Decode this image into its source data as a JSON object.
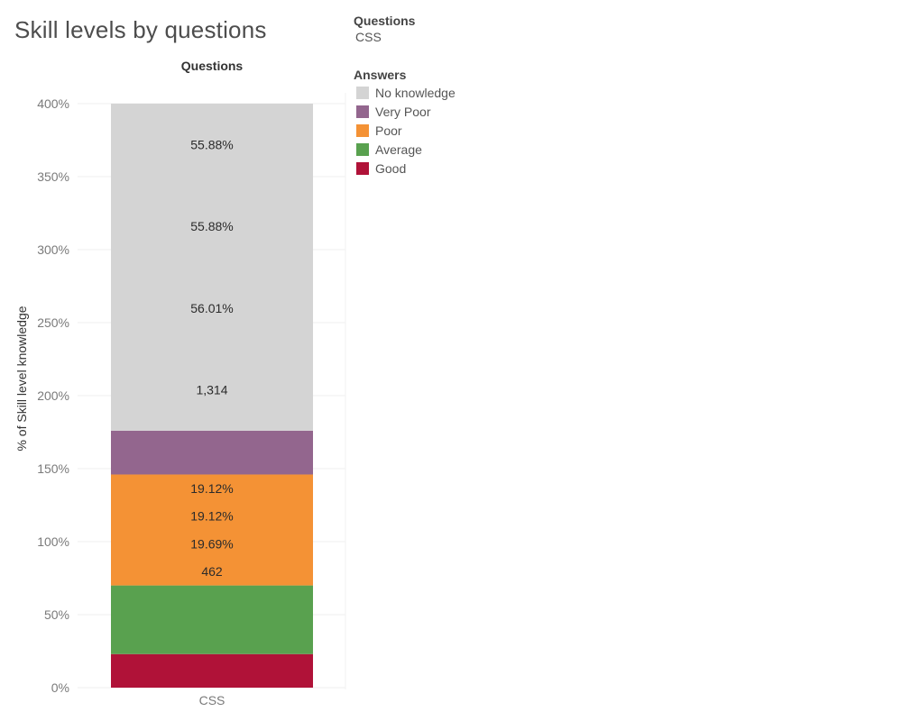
{
  "title": "Skill levels by questions",
  "legend": {
    "filter_heading": "Questions",
    "filter_value": "CSS",
    "answers_heading": "Answers",
    "items": [
      {
        "label": "No knowledge",
        "color": "#d4d4d4"
      },
      {
        "label": "Very Poor",
        "color": "#93668e"
      },
      {
        "label": "Poor",
        "color": "#f49235"
      },
      {
        "label": "Average",
        "color": "#59a14f"
      },
      {
        "label": "Good",
        "color": "#b01238"
      }
    ]
  },
  "chart_data": {
    "type": "bar",
    "stacked": true,
    "column_header": "Questions",
    "ylabel": "% of Skill level knowledge",
    "xlabel": "",
    "categories": [
      "CSS"
    ],
    "ylim": [
      0,
      400
    ],
    "yticks": [
      0,
      50,
      100,
      150,
      200,
      250,
      300,
      350,
      400
    ],
    "ytick_labels": [
      "0%",
      "50%",
      "100%",
      "150%",
      "200%",
      "250%",
      "300%",
      "350%",
      "400%"
    ],
    "grid": true,
    "legend_position": "right",
    "series": [
      {
        "name": "Good",
        "color": "#b01238",
        "values": [
          23.0
        ],
        "labels": []
      },
      {
        "name": "Average",
        "color": "#59a14f",
        "values": [
          47.0
        ],
        "labels": []
      },
      {
        "name": "Poor",
        "color": "#f49235",
        "values": [
          76.0
        ],
        "labels": [
          "19.12%",
          "19.12%",
          "19.69%",
          "462"
        ]
      },
      {
        "name": "Very Poor",
        "color": "#93668e",
        "values": [
          30.0
        ],
        "labels": []
      },
      {
        "name": "No knowledge",
        "color": "#d4d4d4",
        "values": [
          224.0
        ],
        "labels": [
          "55.88%",
          "55.88%",
          "56.01%",
          "1,314"
        ]
      }
    ]
  }
}
